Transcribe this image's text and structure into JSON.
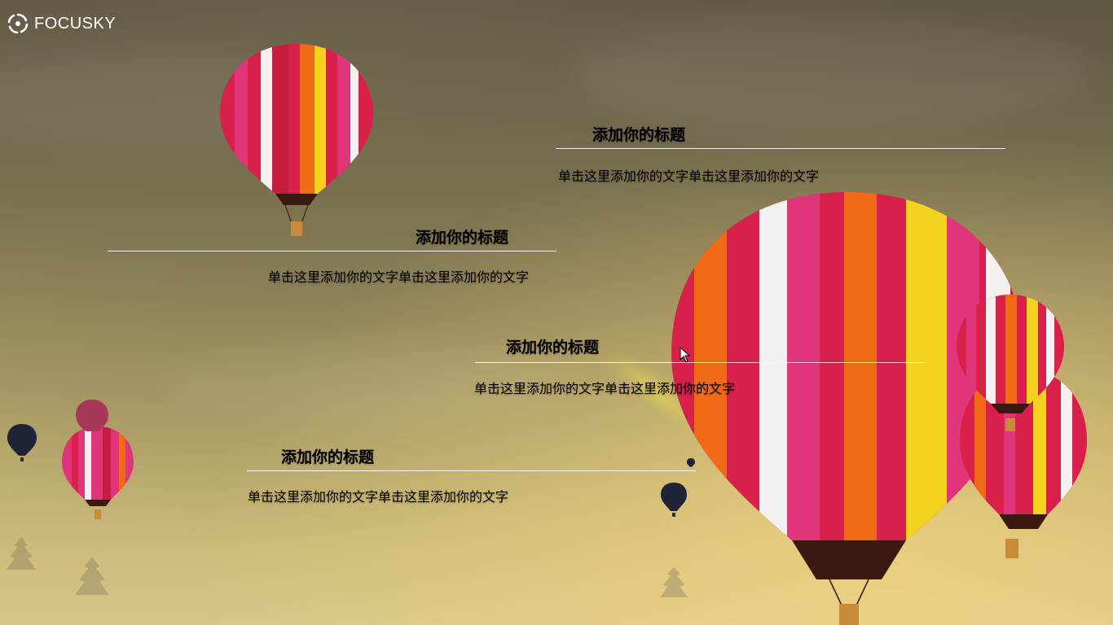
{
  "brand": {
    "name": "FOCUSKY",
    "logo_icon": "focusky-logo-icon"
  },
  "colors": {
    "title_text": "#ffffff",
    "rule": "#ffffff",
    "balloon_red": "#d8214a",
    "balloon_magenta": "#e0357a",
    "balloon_yellow": "#f2d21e",
    "balloon_orange": "#f06a18"
  },
  "blocks": [
    {
      "title": "添加你的标题",
      "text": "单击这里添加你的文字单击这里添加你的文字"
    },
    {
      "title": "添加你的标题",
      "text": "单击这里添加你的文字单击这里添加你的文字"
    },
    {
      "title": "添加你的标题",
      "text": "单击这里添加你的文字单击这里添加你的文字"
    },
    {
      "title": "添加你的标题",
      "text": "单击这里添加你的文字单击这里添加你的文字"
    }
  ],
  "cursor_icon": "mouse-pointer-icon"
}
